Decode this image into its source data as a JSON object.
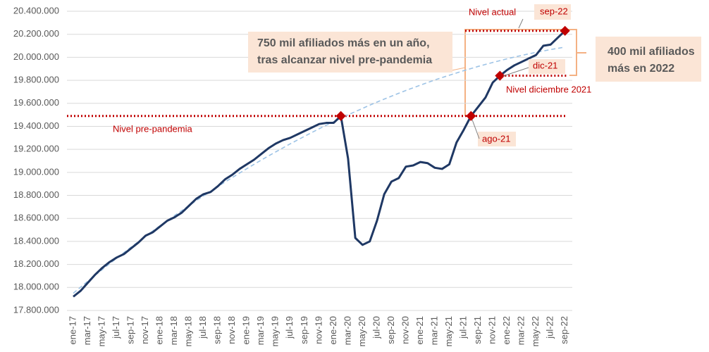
{
  "chart_data": {
    "type": "line",
    "categories": [
      "ene-17",
      null,
      "mar-17",
      null,
      "may-17",
      null,
      "jul-17",
      null,
      "sep-17",
      null,
      "nov-17",
      null,
      "ene-18",
      null,
      "mar-18",
      null,
      "may-18",
      null,
      "jul-18",
      null,
      "sep-18",
      null,
      "nov-18",
      null,
      "ene-19",
      null,
      "mar-19",
      null,
      "may-19",
      null,
      "jul-19",
      null,
      "sep-19",
      null,
      "nov-19",
      null,
      "ene-20",
      null,
      "mar-20",
      null,
      "may-20",
      null,
      "jul-20",
      null,
      "sep-20",
      null,
      "nov-20",
      null,
      "ene-21",
      null,
      "mar-21",
      null,
      "may-21",
      null,
      "jul-21",
      null,
      "sep-21",
      null,
      "nov-21",
      null,
      "ene-22",
      null,
      "mar-22",
      null,
      "may-22",
      null,
      "jul-22",
      null,
      "sep-22"
    ],
    "series": [
      {
        "color": "#1f3864",
        "style": "solid",
        "values": [
          17920000,
          17970000,
          18040000,
          18110000,
          18170000,
          18220000,
          18260000,
          18290000,
          18340000,
          18390000,
          18450000,
          18480000,
          18530000,
          18580000,
          18610000,
          18650000,
          18710000,
          18770000,
          18810000,
          18830000,
          18880000,
          18940000,
          18980000,
          19030000,
          19070000,
          19110000,
          19160000,
          19210000,
          19250000,
          19280000,
          19300000,
          19330000,
          19360000,
          19390000,
          19420000,
          19430000,
          19430000,
          19490000,
          19120000,
          18430000,
          18370000,
          18400000,
          18580000,
          18810000,
          18920000,
          18950000,
          19050000,
          19060000,
          19090000,
          19080000,
          19040000,
          19030000,
          19070000,
          19260000,
          19370000,
          19490000,
          19570000,
          19650000,
          19780000,
          19840000,
          19890000,
          19930000,
          19960000,
          19990000,
          20020000,
          20100000,
          20110000,
          20170000,
          20230000
        ]
      },
      {
        "color": "#9dc3e6",
        "style": "dashed",
        "values": [
          17950000,
          18002000,
          18054000,
          18105000,
          18155000,
          18205000,
          18254000,
          18303000,
          18351000,
          18398000,
          18445000,
          18491000,
          18536000,
          18581000,
          18625000,
          18668000,
          18711000,
          18754000,
          18795000,
          18836000,
          18877000,
          18917000,
          18956000,
          18994000,
          19032000,
          19070000,
          19107000,
          19143000,
          19178000,
          19213000,
          19248000,
          19281000,
          19314000,
          19347000,
          19379000,
          19410000,
          19440000,
          19470000,
          19500000,
          19528000,
          19556000,
          19584000,
          19611000,
          19637000,
          19662000,
          19687000,
          19712000,
          19735000,
          19758000,
          19781000,
          19803000,
          19824000,
          19844000,
          19864000,
          19884000,
          19902000,
          19921000,
          19938000,
          19955000,
          19971000,
          19987000,
          20002000,
          20016000,
          20030000,
          20043000,
          20055000,
          20067000,
          20078000,
          20089000
        ]
      }
    ],
    "markers": [
      37,
      55,
      59,
      68
    ],
    "marker_color": "#c00000",
    "reference_lines": [
      {
        "value": 19490000,
        "color": "#c00000",
        "from": 0
      },
      {
        "value": 20230000,
        "color": "#c00000",
        "from": 54
      },
      {
        "value": 19840000,
        "color": "#c00000",
        "from": 59
      }
    ],
    "ylim": [
      17800000,
      20400000
    ],
    "yticks": [
      {
        "value": 17800000,
        "label": "17.800.000"
      },
      {
        "value": 18000000,
        "label": "18.000.000"
      },
      {
        "value": 18200000,
        "label": "18.200.000"
      },
      {
        "value": 18400000,
        "label": "18.400.000"
      },
      {
        "value": 18600000,
        "label": "18.600.000"
      },
      {
        "value": 18800000,
        "label": "18.800.000"
      },
      {
        "value": 19000000,
        "label": "19.000.000"
      },
      {
        "value": 19200000,
        "label": "19.200.000"
      },
      {
        "value": 19400000,
        "label": "19.400.000"
      },
      {
        "value": 19600000,
        "label": "19.600.000"
      },
      {
        "value": 19800000,
        "label": "19.800.000"
      },
      {
        "value": 20000000,
        "label": "20.000.000"
      },
      {
        "value": 20200000,
        "label": "20.200.000"
      },
      {
        "value": 20400000,
        "label": "20.400.000"
      }
    ],
    "grid": true,
    "annotations": [
      {
        "lines": [
          "Nivel actual"
        ]
      },
      {
        "lines": [
          "sep-22"
        ]
      },
      {
        "lines": [
          "750 mil afiliados más en un año,",
          "tras alcanzar nivel pre-pandemia"
        ]
      },
      {
        "lines": [
          "400  mil afiliados",
          "más en 2022"
        ]
      },
      {
        "lines": [
          "dic-21"
        ]
      },
      {
        "lines": [
          "Nivel diciembre 2021"
        ]
      },
      {
        "lines": [
          "Nivel pre-pandemia"
        ]
      },
      {
        "lines": [
          "ago-21"
        ]
      }
    ]
  }
}
